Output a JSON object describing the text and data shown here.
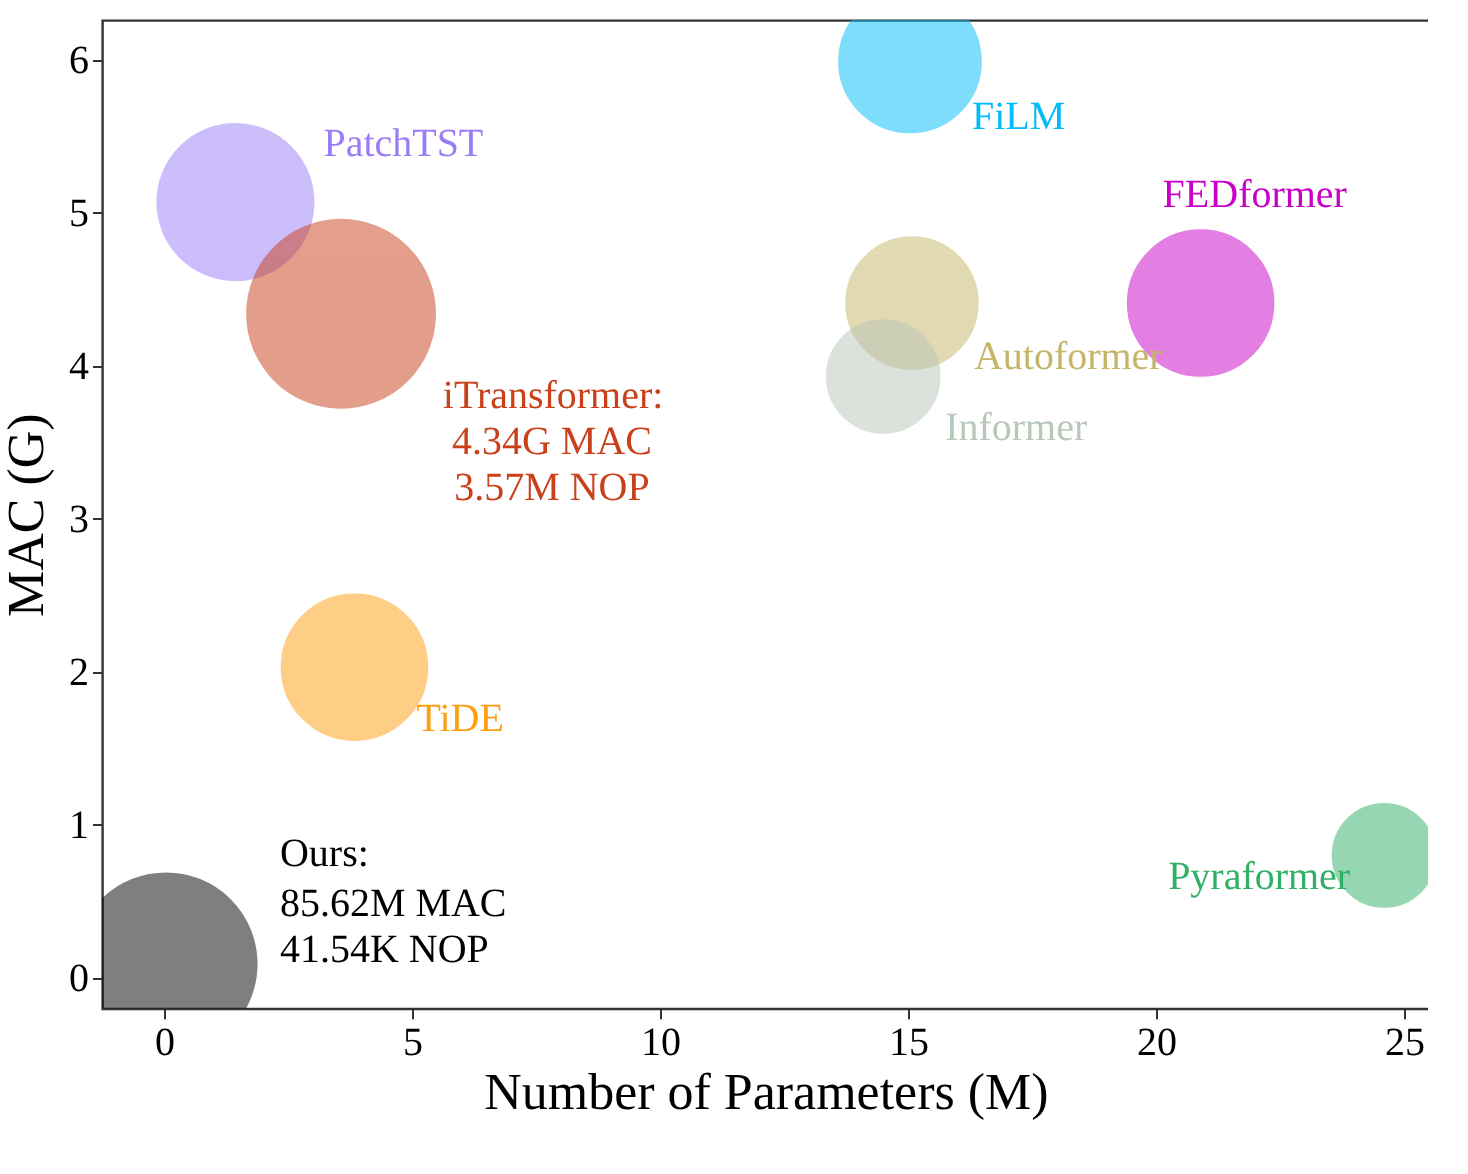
{
  "chart_data": {
    "type": "bubble",
    "xlabel": "Number of Parameters (M)",
    "ylabel": "MAC (G)",
    "xlim": [
      -1.25,
      25.5
    ],
    "xticks": [
      0,
      5,
      10,
      15,
      20,
      25
    ],
    "ylim": [
      -0.2,
      6.26
    ],
    "yticks": [
      0,
      1,
      2,
      3,
      4,
      5,
      6
    ],
    "grid": false,
    "legend": false,
    "series": [
      {
        "name": "PatchTST",
        "color": "#9a7cf8",
        "x": [
          1.44
        ],
        "values": [
          5.07
        ],
        "sizes": [
          0.69
        ]
      },
      {
        "name": "iTransformer:",
        "color": "#c9401a",
        "x": [
          3.57
        ],
        "values": [
          4.34
        ],
        "sizes": [
          1
        ]
      },
      {
        "name": "FiLM",
        "color": "#00bcf9",
        "x": [
          15.04
        ],
        "values": [
          5.99
        ],
        "sizes": [
          0.57
        ]
      },
      {
        "name": "FEDformer",
        "color": "#c800c8",
        "x": [
          20.9
        ],
        "values": [
          4.41
        ],
        "sizes": [
          0.6
        ]
      },
      {
        "name": "Autoformer",
        "color": "#c5b567",
        "x": [
          15.08
        ],
        "values": [
          4.41
        ],
        "sizes": [
          0.49
        ]
      },
      {
        "name": "Informer",
        "color": "#b9c7b9",
        "x": [
          14.5
        ],
        "values": [
          3.93
        ],
        "sizes": [
          0.36
        ]
      },
      {
        "name": "TiDE",
        "color": "#ff9f10",
        "x": [
          3.84
        ],
        "values": [
          2.03
        ],
        "sizes": [
          0.6
        ]
      },
      {
        "name": "Pyraformer",
        "color": "#31af67",
        "x": [
          24.6
        ],
        "values": [
          0.8
        ],
        "sizes": [
          0.3
        ]
      },
      {
        "name": "Ours:",
        "color": "#000000",
        "x": [
          0.04
        ],
        "values": [
          0.09
        ],
        "sizes": [
          0.93
        ]
      }
    ],
    "annotations": [
      "4.34G MAC",
      "3.57M NOP",
      " 85.62M MAC",
      " 41.54K NOP"
    ]
  }
}
